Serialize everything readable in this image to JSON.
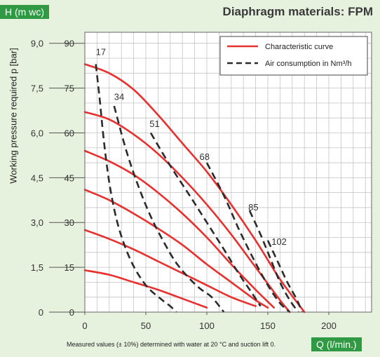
{
  "chart_data": {
    "type": "line",
    "title": "Diaphragm materials: FPM",
    "xlabel": "Q (l/min.)",
    "ylabel_left": "Working pressure required p [bar]",
    "ylabel_right": "H (m wc)",
    "xlim": [
      0,
      220
    ],
    "ylim": [
      0,
      95
    ],
    "grid": true,
    "x_ticks": [
      "0",
      "50",
      "100",
      "150",
      "200"
    ],
    "x_tick_values": [
      0,
      50,
      100,
      150,
      200
    ],
    "y_ticks_bar": [
      "0",
      "1,5",
      "3,0",
      "4,5",
      "6,0",
      "7,5",
      "9,0"
    ],
    "y_ticks_h": [
      "0",
      "15",
      "30",
      "45",
      "60",
      "75",
      "90"
    ],
    "y_tick_values": [
      0,
      15,
      30,
      45,
      60,
      75,
      90
    ],
    "legend": {
      "position": "top-right",
      "entries": [
        {
          "label": "Characteristic curve",
          "style": "solid",
          "color": "#e8302e"
        },
        {
          "label": "Air consumption in Nm³/h",
          "style": "dashed",
          "color": "#2b2b2b"
        }
      ]
    },
    "characteristic_curves": [
      {
        "points": [
          [
            0,
            83
          ],
          [
            20,
            80
          ],
          [
            40,
            74.5
          ],
          [
            60,
            66
          ],
          [
            80,
            56.5
          ],
          [
            100,
            47
          ],
          [
            120,
            36
          ],
          [
            140,
            24
          ],
          [
            160,
            11
          ],
          [
            180,
            0
          ]
        ]
      },
      {
        "points": [
          [
            0,
            67
          ],
          [
            20,
            64.5
          ],
          [
            40,
            59.5
          ],
          [
            60,
            53
          ],
          [
            80,
            45
          ],
          [
            100,
            36
          ],
          [
            120,
            26
          ],
          [
            140,
            15
          ],
          [
            160,
            4
          ],
          [
            168,
            0
          ]
        ]
      },
      {
        "points": [
          [
            0,
            54
          ],
          [
            20,
            50.5
          ],
          [
            40,
            46
          ],
          [
            60,
            40
          ],
          [
            80,
            33
          ],
          [
            100,
            25
          ],
          [
            120,
            16
          ],
          [
            140,
            7.5
          ],
          [
            155,
            1.5
          ]
        ]
      },
      {
        "points": [
          [
            0,
            41
          ],
          [
            20,
            37.5
          ],
          [
            40,
            33
          ],
          [
            60,
            28
          ],
          [
            80,
            22.5
          ],
          [
            100,
            16
          ],
          [
            120,
            10
          ],
          [
            140,
            4
          ],
          [
            150,
            1.5
          ]
        ]
      },
      {
        "points": [
          [
            0,
            27.5
          ],
          [
            20,
            24.5
          ],
          [
            40,
            21
          ],
          [
            60,
            17
          ],
          [
            80,
            13
          ],
          [
            100,
            9
          ],
          [
            120,
            5
          ],
          [
            140,
            2
          ]
        ]
      },
      {
        "points": [
          [
            0,
            14
          ],
          [
            20,
            12.5
          ],
          [
            40,
            10
          ],
          [
            60,
            7.5
          ],
          [
            80,
            4.5
          ],
          [
            100,
            1.5
          ]
        ]
      }
    ],
    "air_consumption_curves": [
      {
        "label": "17",
        "points": [
          [
            9,
            83
          ],
          [
            12,
            72
          ],
          [
            16,
            56
          ],
          [
            21,
            41
          ],
          [
            28,
            28
          ],
          [
            38,
            17
          ],
          [
            50,
            9
          ],
          [
            62,
            4.5
          ],
          [
            70,
            2
          ],
          [
            75,
            0
          ]
        ]
      },
      {
        "label": "34",
        "points": [
          [
            24,
            69
          ],
          [
            34,
            54
          ],
          [
            44,
            42
          ],
          [
            54,
            32
          ],
          [
            64,
            24
          ],
          [
            74,
            17
          ],
          [
            84,
            12
          ],
          [
            94,
            8
          ],
          [
            104,
            5
          ],
          [
            114,
            0
          ]
        ]
      },
      {
        "label": "51",
        "points": [
          [
            54,
            60
          ],
          [
            70,
            49
          ],
          [
            86,
            39
          ],
          [
            100,
            30
          ],
          [
            114,
            21
          ],
          [
            126,
            13
          ],
          [
            136,
            7
          ],
          [
            144,
            2
          ]
        ]
      },
      {
        "label": "68",
        "points": [
          [
            100,
            50
          ],
          [
            114,
            39
          ],
          [
            126,
            28
          ],
          [
            138,
            18
          ],
          [
            150,
            9
          ],
          [
            160,
            3
          ],
          [
            168,
            0
          ]
        ]
      },
      {
        "label": "85",
        "points": [
          [
            135,
            34
          ],
          [
            144,
            26
          ],
          [
            152,
            18
          ],
          [
            160,
            10
          ],
          [
            168,
            4
          ],
          [
            175,
            0
          ]
        ]
      },
      {
        "label": "102",
        "points": [
          [
            150,
            24
          ],
          [
            158,
            17
          ],
          [
            166,
            10
          ],
          [
            174,
            4
          ],
          [
            178,
            0
          ]
        ]
      }
    ],
    "annotations": [
      {
        "text": "17",
        "x": 9,
        "y": 86
      },
      {
        "text": "34",
        "x": 24,
        "y": 71
      },
      {
        "text": "51",
        "x": 53,
        "y": 62
      },
      {
        "text": "68",
        "x": 94,
        "y": 51
      },
      {
        "text": "85",
        "x": 134,
        "y": 34
      },
      {
        "text": "102",
        "x": 153,
        "y": 22.5
      }
    ]
  },
  "header": {
    "h_tag": "H (m wc)",
    "title": "Diaphragm materials: FPM"
  },
  "axis": {
    "q_tag": "Q (l/min.)",
    "ylabel": "Working pressure required p [bar]"
  },
  "footnote": "Measured values (± 10%) determined with water at 20 °C and suction lift 0.",
  "colors": {
    "background": "#e6f1de",
    "plot_background": "#ffffff",
    "accent_green": "#2f9a43",
    "curve_red": "#e8302e",
    "dash_black": "#2b2b2b",
    "grid": "#bdbdbd"
  }
}
